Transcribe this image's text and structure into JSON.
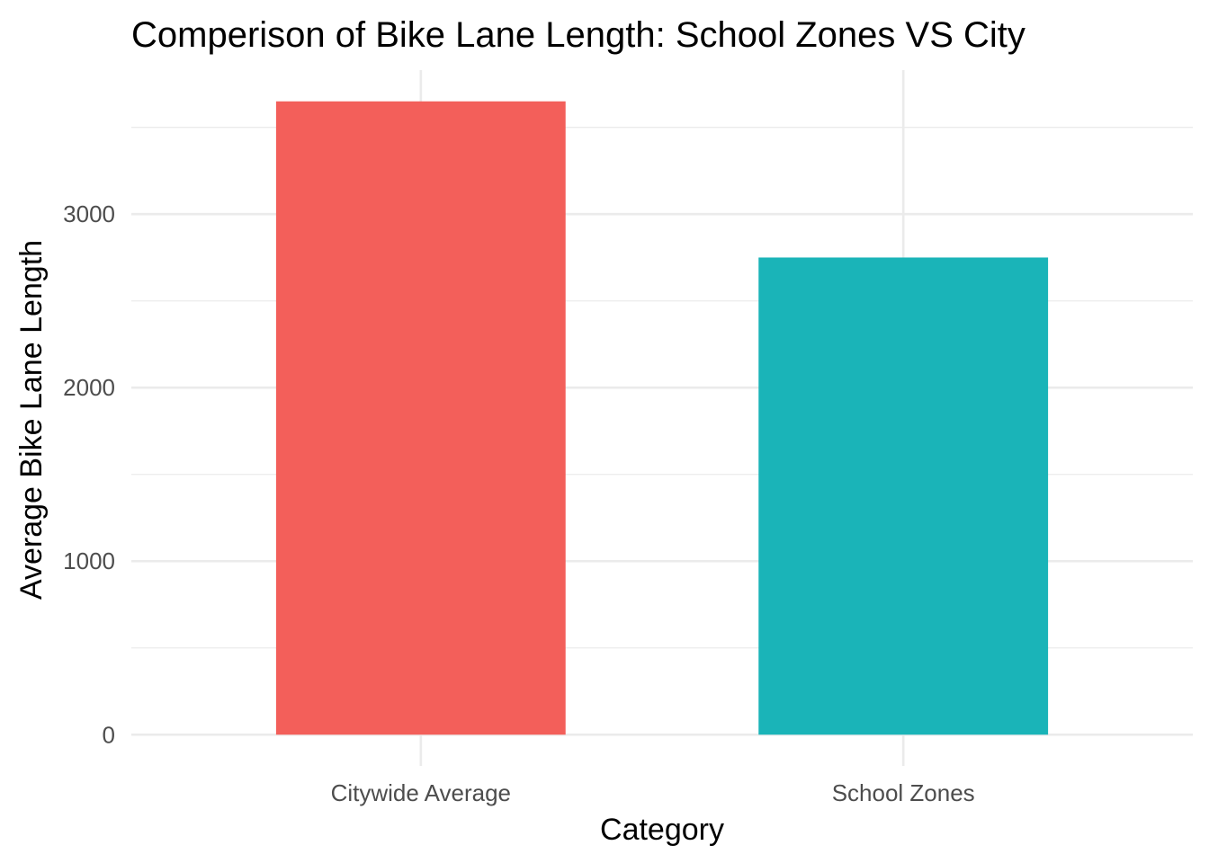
{
  "chart_data": {
    "type": "bar",
    "title": "Comperison of Bike Lane Length: School Zones VS City",
    "xlabel": "Category",
    "ylabel": "Average Bike Lane Length",
    "categories": [
      "Citywide Average",
      "School Zones"
    ],
    "values": [
      3650,
      2750
    ],
    "colors": [
      "#F35F5A",
      "#1AB4B8"
    ],
    "ylim": [
      -180,
      3830
    ],
    "yticks": [
      0,
      1000,
      2000,
      3000
    ],
    "yticks_minor": [
      500,
      1500,
      2500,
      3500
    ],
    "grid": true,
    "legend": "none"
  }
}
